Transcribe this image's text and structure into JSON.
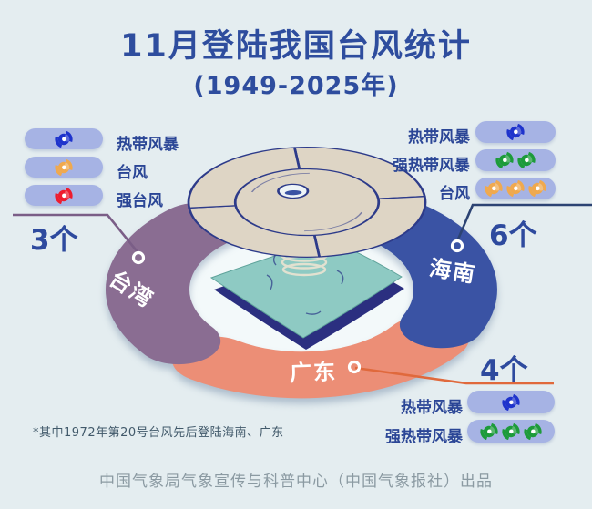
{
  "title": "11月登陆我国台风统计",
  "subtitle": "(1949-2025年)",
  "footnote": "*其中1972年第20号台风先后登陆海南、广东",
  "credit": "中国气象局气象宣传与科普中心（中国气象报社）出品",
  "colors": {
    "background": "#e4edf0",
    "title_text": "#2e4d9e",
    "pill": "#a6b3e4",
    "taiwan_arc": "#8a6d92",
    "hainan_arc": "#3a53a4",
    "guangdong_arc": "#ec8e76",
    "tropical_storm_icon": "#1e33cc",
    "severe_tropical_storm_icon": "#1d9b3a",
    "typhoon_icon": "#f0a94e",
    "severe_typhoon_icon": "#ee1c2e"
  },
  "regions": {
    "taiwan": {
      "name": "台湾",
      "count": 3,
      "count_label": "3个",
      "arc_color": "#8a6d92",
      "line_color": "#7b5e87",
      "storms": [
        {
          "label": "热带风暴",
          "icon": "typhoon-icon",
          "color": "#1e33cc",
          "count": 1
        },
        {
          "label": "台风",
          "icon": "typhoon-icon",
          "color": "#f0a94e",
          "count": 1
        },
        {
          "label": "强台风",
          "icon": "typhoon-icon",
          "color": "#ee1c2e",
          "count": 1
        }
      ]
    },
    "hainan": {
      "name": "海南",
      "count": 6,
      "count_label": "6个",
      "arc_color": "#3a53a4",
      "line_color": "#2c4373",
      "storms": [
        {
          "label": "热带风暴",
          "icon": "typhoon-icon",
          "color": "#1e33cc",
          "count": 1
        },
        {
          "label": "强热带风暴",
          "icon": "typhoon-icon",
          "color": "#1d9b3a",
          "count": 2
        },
        {
          "label": "台风",
          "icon": "typhoon-icon",
          "color": "#f0a94e",
          "count": 3
        }
      ]
    },
    "guangdong": {
      "name": "广东",
      "count": 4,
      "count_label": "4个",
      "arc_color": "#ec8e76",
      "line_color": "#e0693c",
      "storms": [
        {
          "label": "热带风暴",
          "icon": "typhoon-icon",
          "color": "#1e33cc",
          "count": 1
        },
        {
          "label": "强热带风暴",
          "icon": "typhoon-icon",
          "color": "#1d9b3a",
          "count": 3
        }
      ]
    }
  },
  "chart_data": {
    "type": "table",
    "title": "11月登陆我国台风统计（1949-2025年）",
    "categories": [
      "台湾",
      "海南",
      "广东"
    ],
    "series": [
      {
        "name": "热带风暴",
        "values": [
          1,
          1,
          1
        ]
      },
      {
        "name": "强热带风暴",
        "values": [
          0,
          2,
          3
        ]
      },
      {
        "name": "台风",
        "values": [
          1,
          3,
          0
        ]
      },
      {
        "name": "强台风",
        "values": [
          1,
          0,
          0
        ]
      }
    ],
    "totals": [
      3,
      6,
      4
    ],
    "note": "*其中1972年第20号台风先后登陆海南、广东"
  }
}
